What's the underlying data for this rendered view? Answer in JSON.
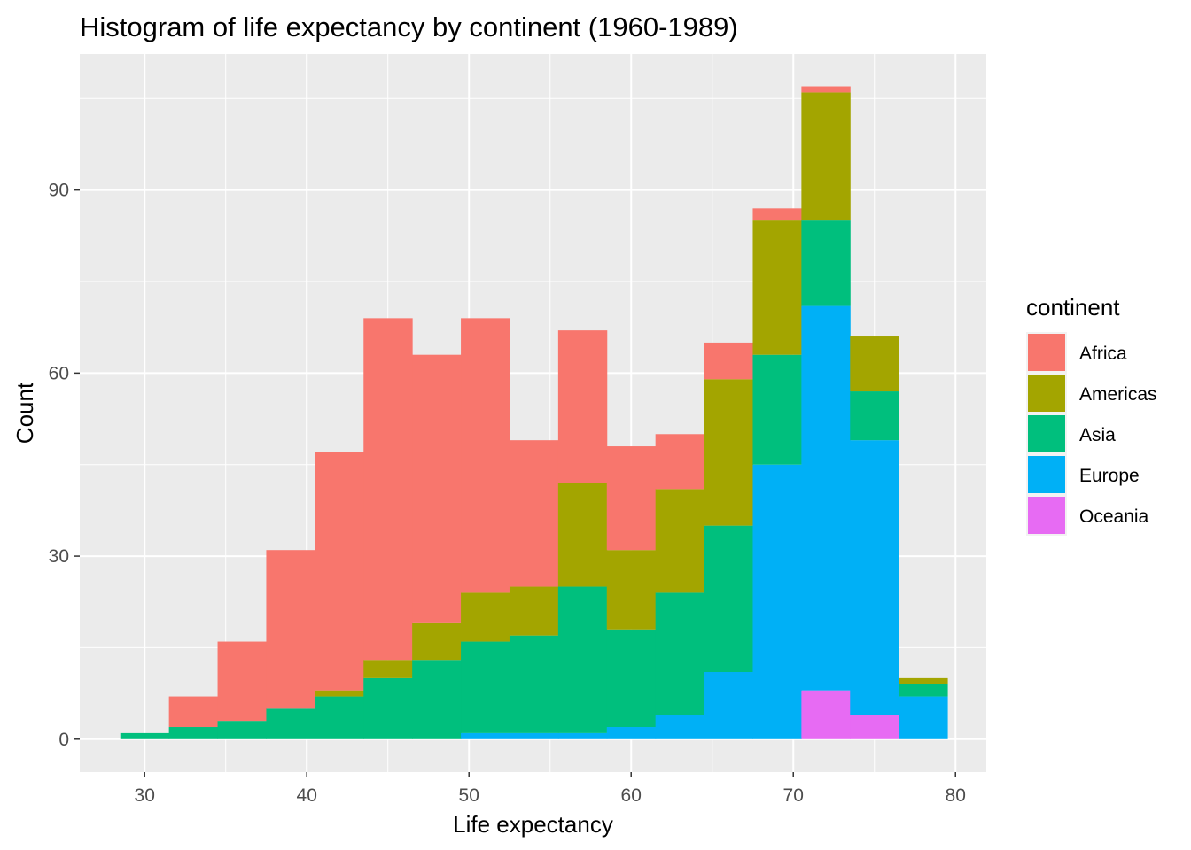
{
  "chart_data": {
    "type": "bar",
    "subtype": "stacked-histogram",
    "title": "Histogram of life expectancy by continent (1960-1989)",
    "xlabel": "Life expectancy",
    "ylabel": "Count",
    "xlim": [
      26.0,
      81.9
    ],
    "ylim": [
      -5.4,
      112.3
    ],
    "x_ticks": [
      30,
      40,
      50,
      60,
      70,
      80
    ],
    "y_ticks": [
      0,
      30,
      60,
      90
    ],
    "grid": true,
    "bin_width": 3,
    "bins": [
      [
        28.5,
        31.5
      ],
      [
        31.5,
        34.5
      ],
      [
        34.5,
        37.5
      ],
      [
        37.5,
        40.5
      ],
      [
        40.5,
        43.5
      ],
      [
        43.5,
        46.5
      ],
      [
        46.5,
        49.5
      ],
      [
        49.5,
        52.5
      ],
      [
        52.5,
        55.5
      ],
      [
        55.5,
        58.5
      ],
      [
        58.5,
        61.5
      ],
      [
        61.5,
        64.5
      ],
      [
        64.5,
        67.5
      ],
      [
        67.5,
        70.5
      ],
      [
        70.5,
        73.5
      ],
      [
        73.5,
        76.5
      ],
      [
        76.5,
        79.5
      ]
    ],
    "legend": {
      "title": "continent",
      "position": "right"
    },
    "series": [
      {
        "name": "Oceania",
        "color": "#E76BF3",
        "values": [
          0,
          0,
          0,
          0,
          0,
          0,
          0,
          0,
          0,
          0,
          0,
          0,
          0,
          0,
          8,
          4,
          0
        ]
      },
      {
        "name": "Europe",
        "color": "#00B0F6",
        "values": [
          0,
          0,
          0,
          0,
          0,
          0,
          0,
          1,
          1,
          1,
          2,
          4,
          11,
          45,
          63,
          45,
          7
        ]
      },
      {
        "name": "Asia",
        "color": "#00BF7D",
        "values": [
          1,
          2,
          3,
          5,
          7,
          10,
          13,
          15,
          16,
          24,
          16,
          20,
          24,
          18,
          14,
          8,
          2
        ]
      },
      {
        "name": "Americas",
        "color": "#A3A500",
        "values": [
          0,
          0,
          0,
          0,
          1,
          3,
          6,
          8,
          8,
          17,
          13,
          17,
          24,
          22,
          21,
          9,
          1
        ]
      },
      {
        "name": "Africa",
        "color": "#F8766D",
        "values": [
          0,
          5,
          13,
          26,
          39,
          56,
          44,
          45,
          24,
          25,
          17,
          9,
          6,
          2,
          1,
          0,
          0
        ]
      }
    ],
    "legend_order": [
      "Africa",
      "Americas",
      "Asia",
      "Europe",
      "Oceania"
    ]
  }
}
